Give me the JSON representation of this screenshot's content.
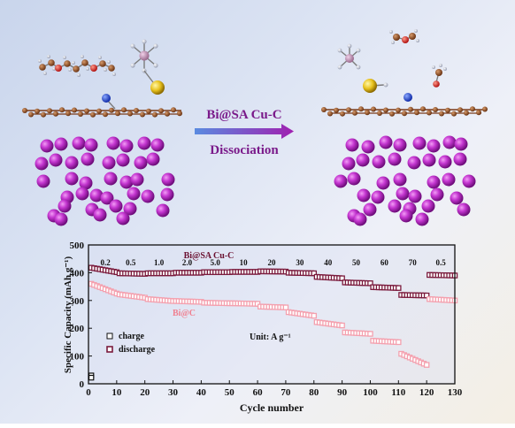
{
  "top": {
    "catalyst_label": "Bi@SA Cu-C",
    "process_label": "Dissociation"
  },
  "chart_data": {
    "type": "scatter",
    "xlabel": "Cycle number",
    "ylabel": "Specific Capacity (mAh g⁻¹)",
    "xlim": [
      0,
      130
    ],
    "ylim": [
      0,
      500
    ],
    "xticks": [
      0,
      10,
      20,
      30,
      40,
      50,
      60,
      70,
      80,
      90,
      100,
      110,
      120,
      130
    ],
    "yticks": [
      0,
      100,
      200,
      300,
      400,
      500
    ],
    "legend": {
      "placement": "lower-left",
      "entries": [
        "charge",
        "discharge"
      ]
    },
    "unit_note": "Unit: A g⁻¹",
    "rate_labels": [
      {
        "x": 6,
        "text": "0.2"
      },
      {
        "x": 15,
        "text": "0.5"
      },
      {
        "x": 25,
        "text": "1.0"
      },
      {
        "x": 35,
        "text": "2.0"
      },
      {
        "x": 45,
        "text": "5.0"
      },
      {
        "x": 55,
        "text": "10"
      },
      {
        "x": 65,
        "text": "20"
      },
      {
        "x": 75,
        "text": "30"
      },
      {
        "x": 85,
        "text": "40"
      },
      {
        "x": 95,
        "text": "50"
      },
      {
        "x": 105,
        "text": "60"
      },
      {
        "x": 115,
        "text": "70"
      },
      {
        "x": 125,
        "text": "0.5"
      }
    ],
    "series": [
      {
        "name": "Bi@SA Cu-C",
        "color": "#7a1a3c",
        "label_pos": [
          48,
          455
        ],
        "segments": [
          {
            "from": 1,
            "to": 10,
            "start": 418,
            "end": 402
          },
          {
            "from": 11,
            "to": 20,
            "start": 398,
            "end": 396
          },
          {
            "from": 21,
            "to": 30,
            "start": 398,
            "end": 398
          },
          {
            "from": 31,
            "to": 40,
            "start": 400,
            "end": 400
          },
          {
            "from": 41,
            "to": 50,
            "start": 402,
            "end": 402
          },
          {
            "from": 51,
            "to": 60,
            "start": 403,
            "end": 403
          },
          {
            "from": 61,
            "to": 70,
            "start": 405,
            "end": 404
          },
          {
            "from": 71,
            "to": 80,
            "start": 400,
            "end": 398
          },
          {
            "from": 81,
            "to": 90,
            "start": 385,
            "end": 380
          },
          {
            "from": 91,
            "to": 100,
            "start": 365,
            "end": 362
          },
          {
            "from": 101,
            "to": 110,
            "start": 348,
            "end": 345
          },
          {
            "from": 111,
            "to": 120,
            "start": 320,
            "end": 318
          },
          {
            "from": 121,
            "to": 130,
            "start": 392,
            "end": 390
          }
        ]
      },
      {
        "name": "Bi@C",
        "color": "#f4a0ae",
        "label_pos": [
          30,
          270
        ],
        "segments": [
          {
            "from": 1,
            "to": 10,
            "start": 360,
            "end": 325
          },
          {
            "from": 11,
            "to": 20,
            "start": 322,
            "end": 310
          },
          {
            "from": 21,
            "to": 30,
            "start": 305,
            "end": 298
          },
          {
            "from": 31,
            "to": 40,
            "start": 298,
            "end": 295
          },
          {
            "from": 41,
            "to": 50,
            "start": 292,
            "end": 290
          },
          {
            "from": 51,
            "to": 60,
            "start": 290,
            "end": 288
          },
          {
            "from": 61,
            "to": 70,
            "start": 278,
            "end": 275
          },
          {
            "from": 71,
            "to": 80,
            "start": 258,
            "end": 245
          },
          {
            "from": 81,
            "to": 90,
            "start": 222,
            "end": 210
          },
          {
            "from": 91,
            "to": 100,
            "start": 185,
            "end": 180
          },
          {
            "from": 101,
            "to": 110,
            "start": 155,
            "end": 150
          },
          {
            "from": 111,
            "to": 120,
            "start": 108,
            "end": 68
          },
          {
            "from": 121,
            "to": 130,
            "start": 305,
            "end": 300
          }
        ]
      }
    ]
  }
}
